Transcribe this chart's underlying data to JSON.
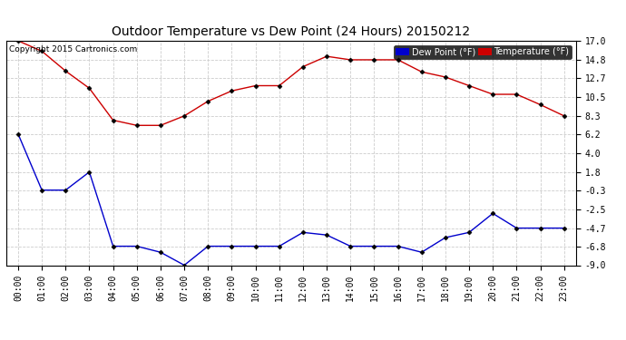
{
  "title": "Outdoor Temperature vs Dew Point (24 Hours) 20150212",
  "copyright": "Copyright 2015 Cartronics.com",
  "x_labels": [
    "00:00",
    "01:00",
    "02:00",
    "03:00",
    "04:00",
    "05:00",
    "06:00",
    "07:00",
    "08:00",
    "09:00",
    "10:00",
    "11:00",
    "12:00",
    "13:00",
    "14:00",
    "15:00",
    "16:00",
    "17:00",
    "18:00",
    "19:00",
    "20:00",
    "21:00",
    "22:00",
    "23:00"
  ],
  "temperature": [
    17.0,
    15.8,
    13.5,
    11.5,
    7.8,
    7.2,
    7.2,
    8.3,
    10.0,
    11.2,
    11.8,
    11.8,
    14.0,
    15.2,
    14.8,
    14.8,
    14.8,
    13.4,
    12.8,
    11.8,
    10.8,
    10.8,
    9.6,
    8.3
  ],
  "dew_point": [
    6.2,
    -0.3,
    -0.3,
    1.8,
    -6.8,
    -6.8,
    -7.5,
    -9.0,
    -6.8,
    -6.8,
    -6.8,
    -6.8,
    -5.2,
    -5.5,
    -6.8,
    -6.8,
    -6.8,
    -7.5,
    -5.8,
    -5.2,
    -3.0,
    -4.7,
    -4.7,
    -4.7
  ],
  "temp_color": "#cc0000",
  "dew_color": "#0000cc",
  "plot_bg_color": "#ffffff",
  "fig_bg_color": "#ffffff",
  "grid_color": "#cccccc",
  "ylim_min": -9.0,
  "ylim_max": 17.0,
  "yticks": [
    17.0,
    14.8,
    12.7,
    10.5,
    8.3,
    6.2,
    4.0,
    1.8,
    -0.3,
    -2.5,
    -4.7,
    -6.8,
    -9.0
  ],
  "legend_dew_label": "Dew Point (°F)",
  "legend_temp_label": "Temperature (°F)",
  "fig_width": 6.9,
  "fig_height": 3.75,
  "dpi": 100
}
